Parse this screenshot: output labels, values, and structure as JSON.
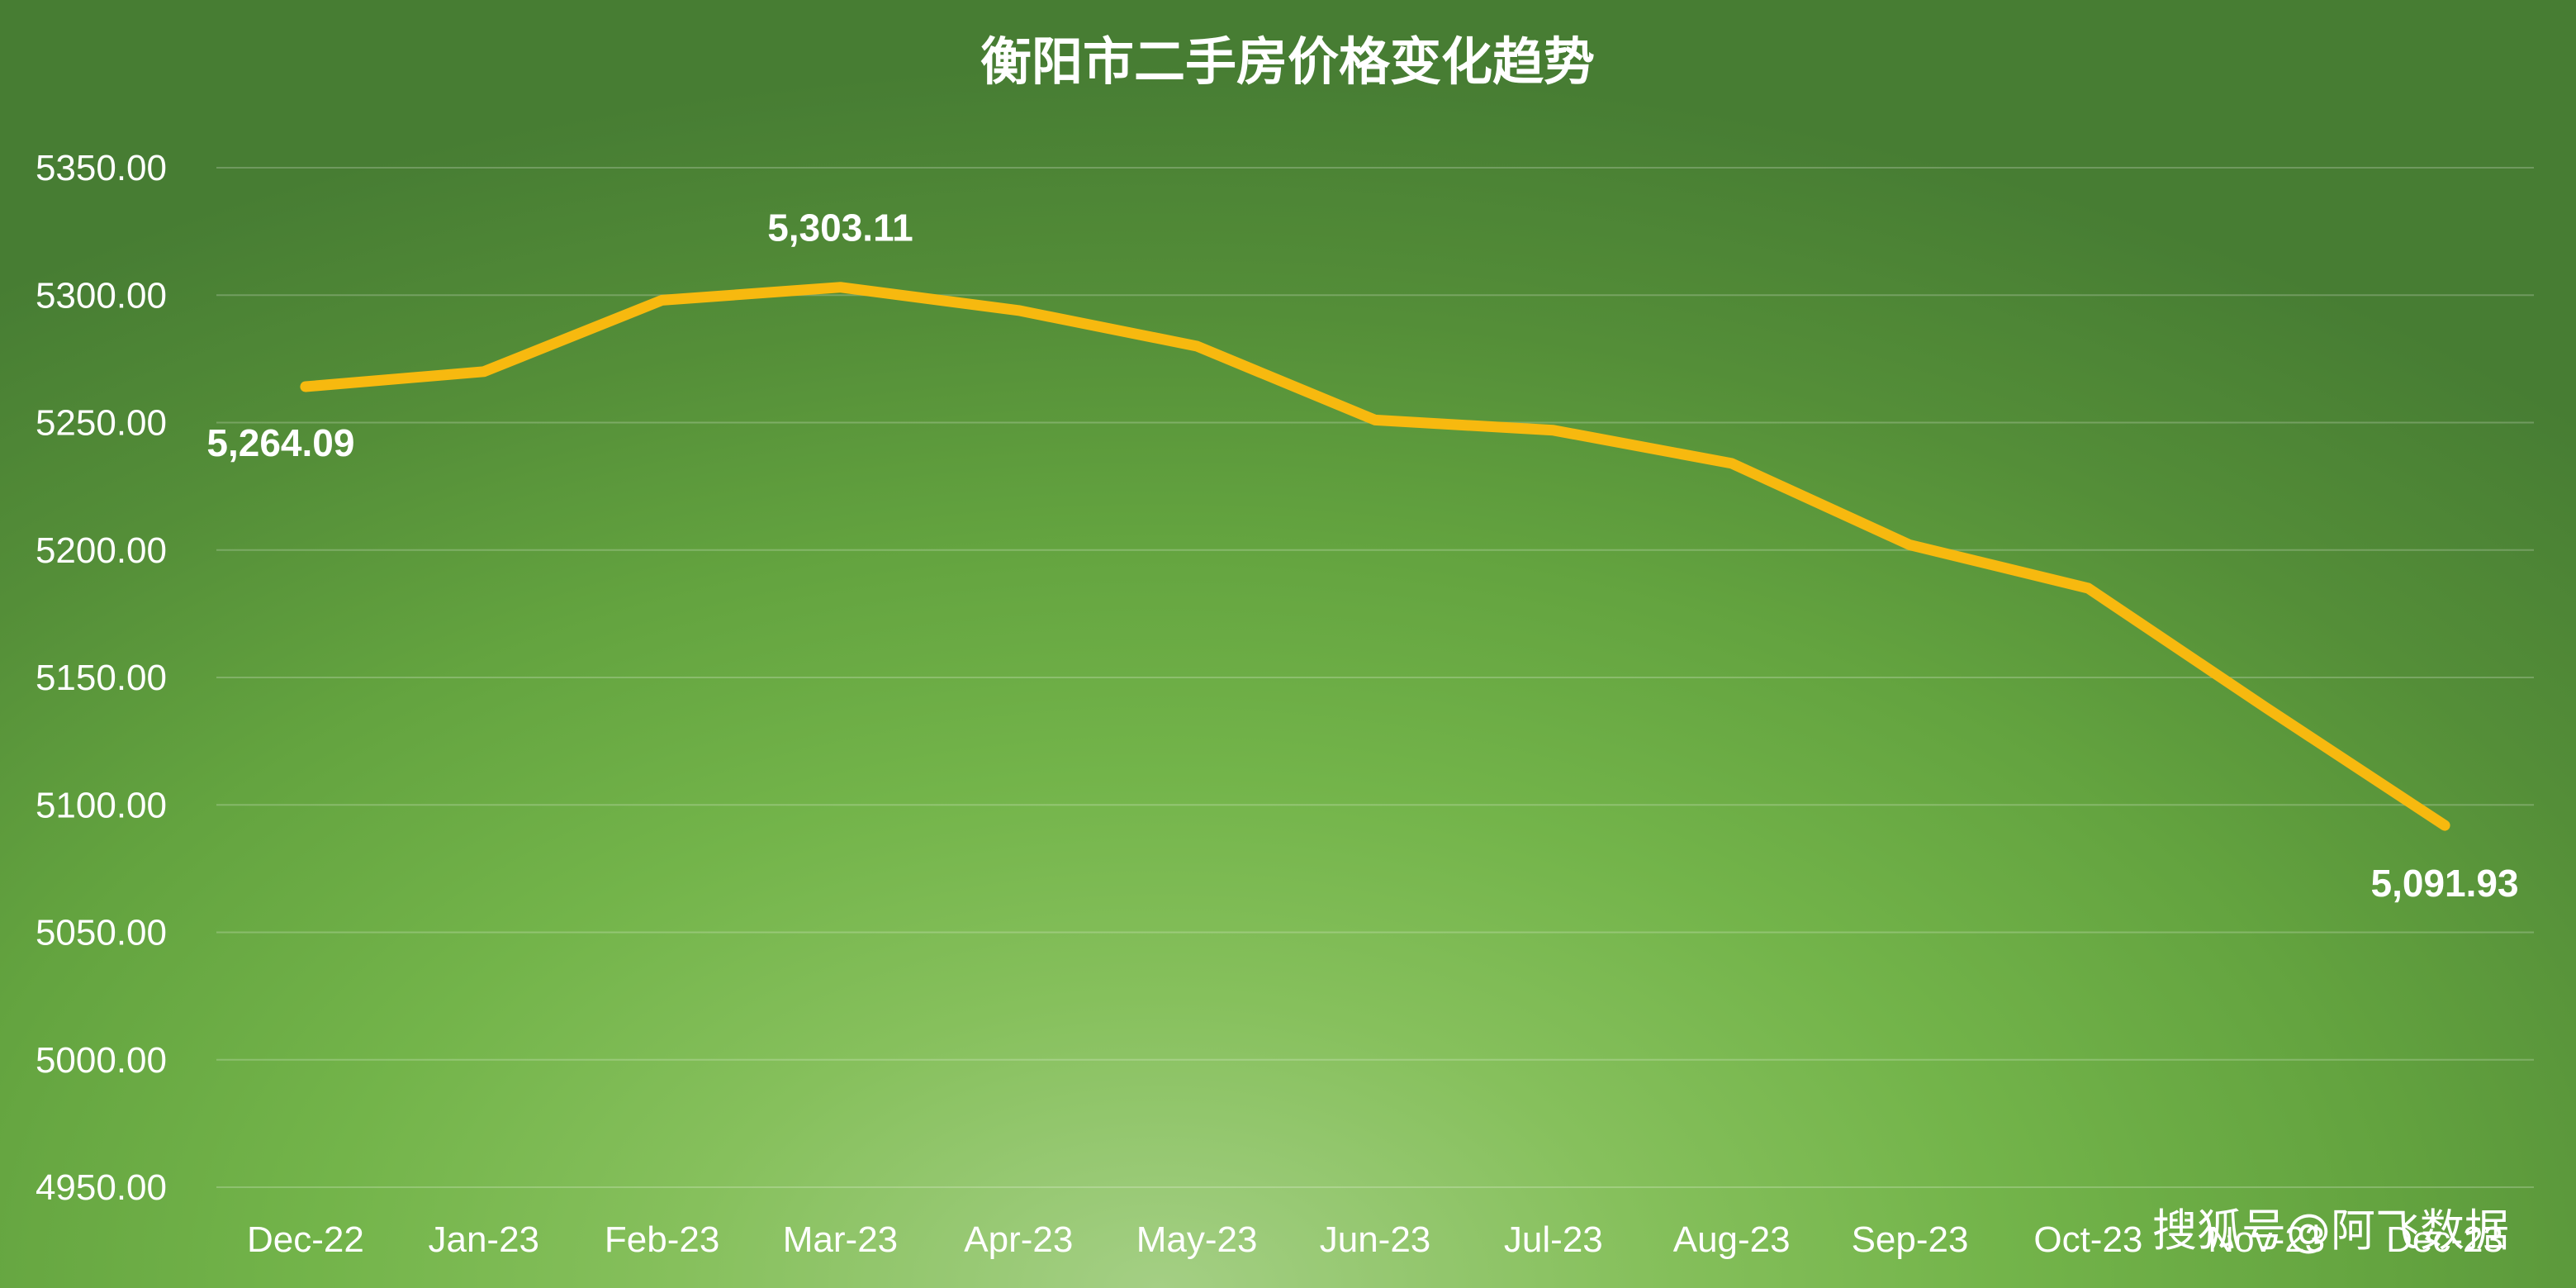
{
  "watermark": "搜狐号@阿飞数据",
  "chart_data": {
    "type": "line",
    "title": "衡阳市二手房价格变化趋势",
    "xlabel": "",
    "ylabel": "",
    "categories": [
      "Dec-22",
      "Jan-23",
      "Feb-23",
      "Mar-23",
      "Apr-23",
      "May-23",
      "Jun-23",
      "Jul-23",
      "Aug-23",
      "Sep-23",
      "Oct-23",
      "Nov-23",
      "Dec-23"
    ],
    "series": [
      {
        "values": [
          5264.09,
          5270.0,
          5298.0,
          5303.11,
          5294.0,
          5280.0,
          5251.0,
          5247.0,
          5234.0,
          5202.0,
          5185.0,
          5138.0,
          5091.93
        ],
        "color": "#f7b90f"
      }
    ],
    "ylim": [
      4950,
      5350
    ],
    "yticks": [
      "5350.00",
      "5300.00",
      "5250.00",
      "5200.00",
      "5150.00",
      "5100.00",
      "5050.00",
      "5000.00",
      "4950.00"
    ],
    "data_labels": [
      {
        "index": 0,
        "text": "5,264.09"
      },
      {
        "index": 3,
        "text": "5,303.11"
      },
      {
        "index": 12,
        "text": "5,091.93"
      }
    ],
    "grid": true,
    "legend": "none",
    "background_color": "#6aab42",
    "line_color": "#f7b90f"
  }
}
